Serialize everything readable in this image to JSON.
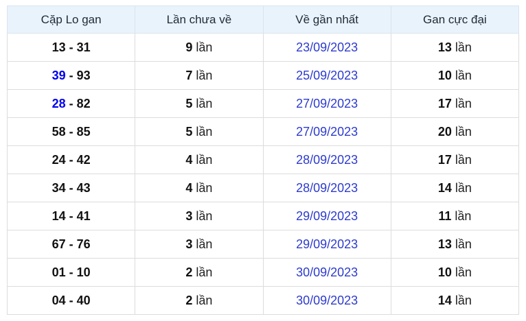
{
  "table": {
    "headers": [
      "Cặp Lo gan",
      "Lần chưa về",
      "Về gần nhất",
      "Gan cực đại"
    ],
    "pair_separator": "-",
    "unit_label": "lần",
    "rows": [
      {
        "pair_first": "13",
        "pair_second": "31",
        "pair_first_is_link": false,
        "missed": "9",
        "last_date": "23/09/2023",
        "max_gan": "13"
      },
      {
        "pair_first": "39",
        "pair_second": "93",
        "pair_first_is_link": true,
        "missed": "7",
        "last_date": "25/09/2023",
        "max_gan": "10"
      },
      {
        "pair_first": "28",
        "pair_second": "82",
        "pair_first_is_link": true,
        "missed": "5",
        "last_date": "27/09/2023",
        "max_gan": "17"
      },
      {
        "pair_first": "58",
        "pair_second": "85",
        "pair_first_is_link": false,
        "missed": "5",
        "last_date": "27/09/2023",
        "max_gan": "20"
      },
      {
        "pair_first": "24",
        "pair_second": "42",
        "pair_first_is_link": false,
        "missed": "4",
        "last_date": "28/09/2023",
        "max_gan": "17"
      },
      {
        "pair_first": "34",
        "pair_second": "43",
        "pair_first_is_link": false,
        "missed": "4",
        "last_date": "28/09/2023",
        "max_gan": "14"
      },
      {
        "pair_first": "14",
        "pair_second": "41",
        "pair_first_is_link": false,
        "missed": "3",
        "last_date": "29/09/2023",
        "max_gan": "11"
      },
      {
        "pair_first": "67",
        "pair_second": "76",
        "pair_first_is_link": false,
        "missed": "3",
        "last_date": "29/09/2023",
        "max_gan": "13"
      },
      {
        "pair_first": "01",
        "pair_second": "10",
        "pair_first_is_link": false,
        "missed": "2",
        "last_date": "30/09/2023",
        "max_gan": "10"
      },
      {
        "pair_first": "04",
        "pair_second": "40",
        "pair_first_is_link": false,
        "missed": "2",
        "last_date": "30/09/2023",
        "max_gan": "14"
      }
    ]
  },
  "colors": {
    "header_background": "#e9f3fb",
    "header_text": "#1e2a38",
    "row_border": "#dcdcdc",
    "pair_link_blue": "#0000ee",
    "date_link_blue": "#2d3bcd",
    "body_text": "#111111"
  }
}
